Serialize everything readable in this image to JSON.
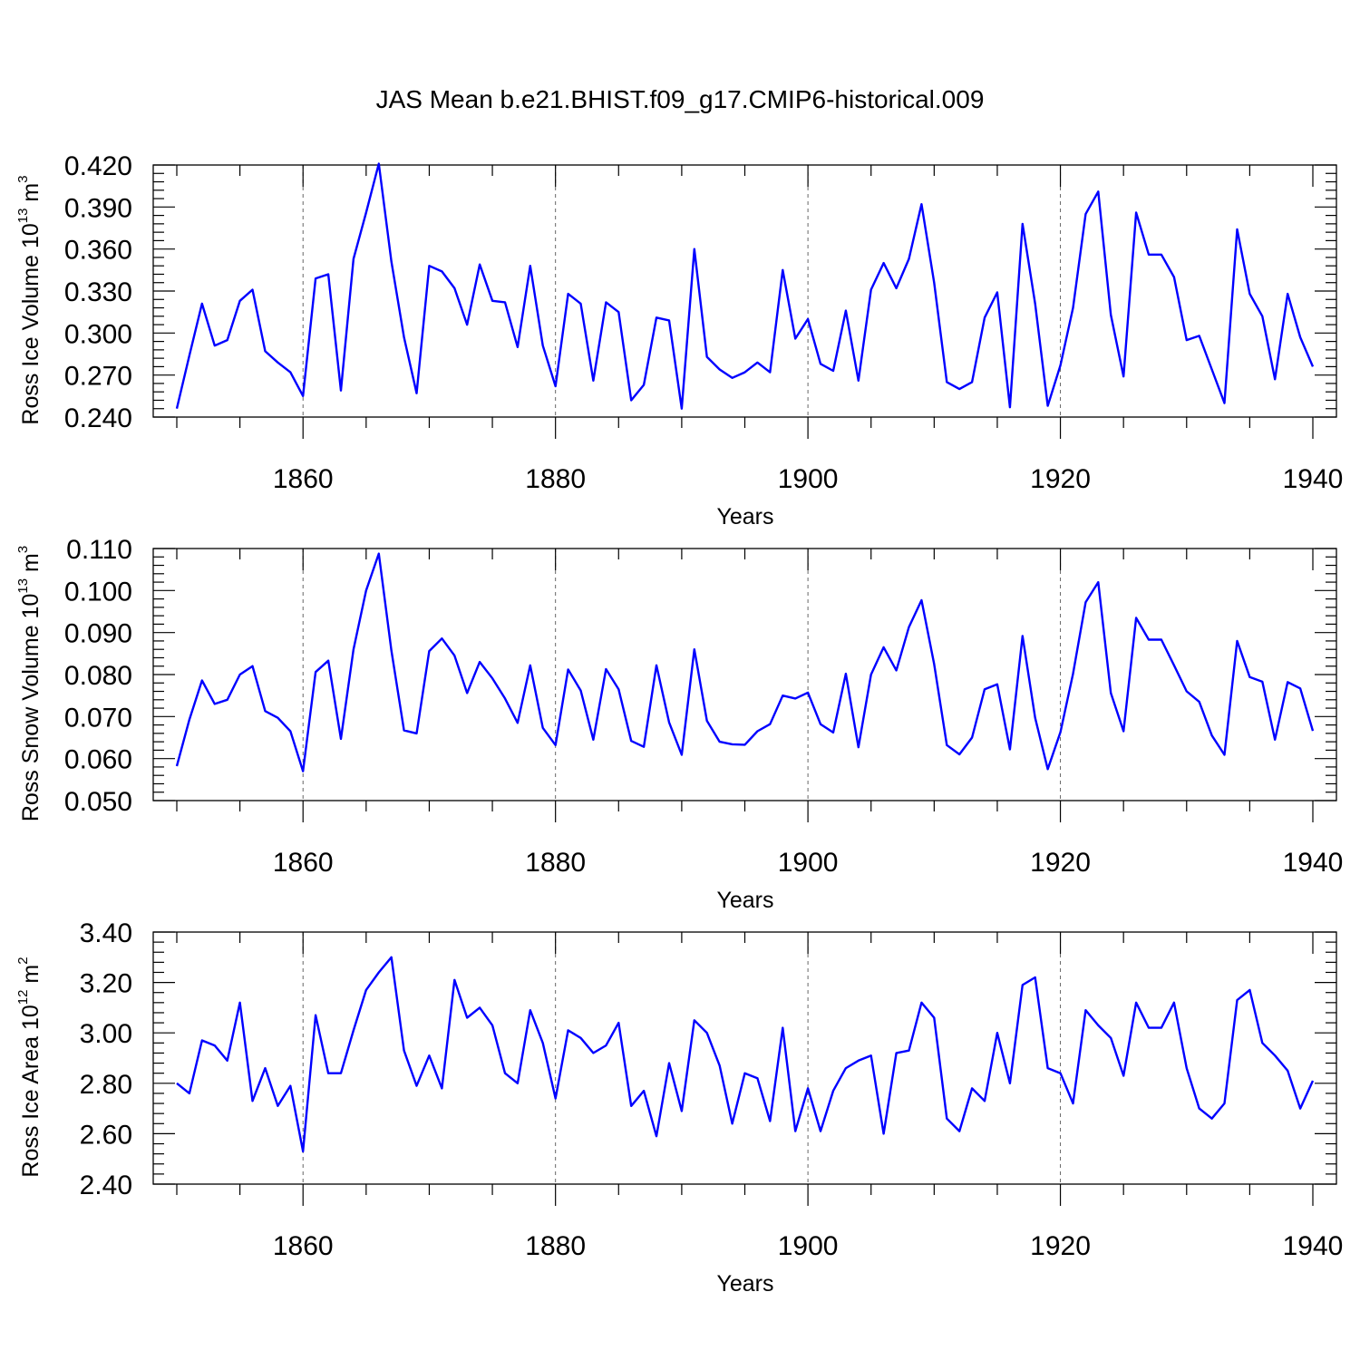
{
  "figure": {
    "title": "JAS Mean b.e21.BHIST.f09_g17.CMIP6-historical.009"
  },
  "chart_data": [
    {
      "type": "line",
      "ylabel": "Ross Ice Volume 10",
      "ylabel_exp": "13",
      "ylabel_unit": "m",
      "ylabel_unit_exp": "3",
      "xlabel": "Years",
      "xlim": [
        1850,
        1940
      ],
      "ylim": [
        0.24,
        0.42
      ],
      "yticks": [
        0.24,
        0.27,
        0.3,
        0.33,
        0.36,
        0.39,
        0.42
      ],
      "ytick_labels": [
        "0.240",
        "0.270",
        "0.300",
        "0.330",
        "0.360",
        "0.390",
        "0.420"
      ],
      "xticks": [
        1860,
        1880,
        1900,
        1920,
        1940
      ],
      "xtick_labels": [
        "1860",
        "1880",
        "1900",
        "1920",
        "1940"
      ],
      "grid_x": [
        1860,
        1880,
        1900,
        1920
      ],
      "color": "#0000ff",
      "x_start": 1850,
      "values": [
        0.246,
        0.284,
        0.321,
        0.291,
        0.295,
        0.323,
        0.331,
        0.287,
        0.279,
        0.272,
        0.255,
        0.339,
        0.342,
        0.259,
        0.353,
        0.386,
        0.421,
        0.351,
        0.297,
        0.257,
        0.348,
        0.344,
        0.332,
        0.306,
        0.349,
        0.323,
        0.322,
        0.29,
        0.348,
        0.291,
        0.262,
        0.328,
        0.321,
        0.266,
        0.322,
        0.315,
        0.252,
        0.263,
        0.311,
        0.309,
        0.246,
        0.36,
        0.283,
        0.274,
        0.268,
        0.272,
        0.279,
        0.272,
        0.345,
        0.296,
        0.31,
        0.278,
        0.273,
        0.316,
        0.266,
        0.331,
        0.35,
        0.332,
        0.353,
        0.392,
        0.336,
        0.265,
        0.26,
        0.265,
        0.311,
        0.329,
        0.247,
        0.378,
        0.321,
        0.248,
        0.277,
        0.318,
        0.385,
        0.401,
        0.313,
        0.269,
        0.386,
        0.356,
        0.356,
        0.34,
        0.295,
        0.298,
        0.274,
        0.25,
        0.374,
        0.328,
        0.312,
        0.267,
        0.328,
        0.297,
        0.276
      ]
    },
    {
      "type": "line",
      "ylabel": "Ross Snow Volume 10",
      "ylabel_exp": "13",
      "ylabel_unit": "m",
      "ylabel_unit_exp": "3",
      "xlabel": "Years",
      "xlim": [
        1850,
        1940
      ],
      "ylim": [
        0.05,
        0.11
      ],
      "yticks": [
        0.05,
        0.06,
        0.07,
        0.08,
        0.09,
        0.1,
        0.11
      ],
      "ytick_labels": [
        "0.050",
        "0.060",
        "0.070",
        "0.080",
        "0.090",
        "0.100",
        "0.110"
      ],
      "xticks": [
        1860,
        1880,
        1900,
        1920,
        1940
      ],
      "xtick_labels": [
        "1860",
        "1880",
        "1900",
        "1920",
        "1940"
      ],
      "grid_x": [
        1860,
        1880,
        1900,
        1920
      ],
      "color": "#0000ff",
      "x_start": 1850,
      "values": [
        0.0582,
        0.0693,
        0.0786,
        0.073,
        0.074,
        0.08,
        0.082,
        0.0713,
        0.0697,
        0.0665,
        0.057,
        0.0806,
        0.0833,
        0.0647,
        0.086,
        0.1,
        0.1088,
        0.0857,
        0.0667,
        0.066,
        0.0856,
        0.0886,
        0.0845,
        0.0756,
        0.083,
        0.0791,
        0.0743,
        0.0685,
        0.0822,
        0.0673,
        0.0632,
        0.0812,
        0.0762,
        0.0645,
        0.0813,
        0.0765,
        0.0642,
        0.0628,
        0.0822,
        0.0686,
        0.0609,
        0.086,
        0.069,
        0.064,
        0.0634,
        0.0633,
        0.0665,
        0.0682,
        0.075,
        0.0743,
        0.0757,
        0.0682,
        0.0662,
        0.0802,
        0.0627,
        0.08,
        0.0865,
        0.081,
        0.0913,
        0.0977,
        0.0825,
        0.0632,
        0.061,
        0.065,
        0.0765,
        0.0777,
        0.0622,
        0.0892,
        0.0697,
        0.0575,
        0.0663,
        0.0802,
        0.0972,
        0.102,
        0.0756,
        0.0665,
        0.0935,
        0.0883,
        0.0883,
        0.0822,
        0.076,
        0.0735,
        0.0655,
        0.0609,
        0.088,
        0.0794,
        0.0783,
        0.0645,
        0.0782,
        0.0767,
        0.0666
      ]
    },
    {
      "type": "line",
      "ylabel": "Ross Ice Area 10",
      "ylabel_exp": "12",
      "ylabel_unit": "m",
      "ylabel_unit_exp": "2",
      "xlabel": "Years",
      "xlim": [
        1850,
        1940
      ],
      "ylim": [
        2.4,
        3.4
      ],
      "yticks": [
        2.4,
        2.6,
        2.8,
        3.0,
        3.2,
        3.4
      ],
      "ytick_labels": [
        "2.40",
        "2.60",
        "2.80",
        "3.00",
        "3.20",
        "3.40"
      ],
      "xticks": [
        1860,
        1880,
        1900,
        1920,
        1940
      ],
      "xtick_labels": [
        "1860",
        "1880",
        "1900",
        "1920",
        "1940"
      ],
      "grid_x": [
        1860,
        1880,
        1900,
        1920
      ],
      "color": "#0000ff",
      "x_start": 1850,
      "values": [
        2.8,
        2.76,
        2.97,
        2.95,
        2.89,
        3.12,
        2.73,
        2.86,
        2.71,
        2.79,
        2.53,
        3.07,
        2.84,
        2.84,
        3.01,
        3.17,
        3.24,
        3.3,
        2.93,
        2.79,
        2.91,
        2.78,
        3.21,
        3.06,
        3.1,
        3.03,
        2.84,
        2.8,
        3.09,
        2.96,
        2.74,
        3.01,
        2.98,
        2.92,
        2.95,
        3.04,
        2.71,
        2.77,
        2.59,
        2.88,
        2.69,
        3.05,
        3.0,
        2.87,
        2.64,
        2.84,
        2.82,
        2.65,
        3.02,
        2.61,
        2.78,
        2.61,
        2.77,
        2.86,
        2.89,
        2.91,
        2.6,
        2.92,
        2.93,
        3.12,
        3.06,
        2.66,
        2.61,
        2.78,
        2.73,
        3.0,
        2.8,
        3.19,
        3.22,
        2.86,
        2.84,
        2.72,
        3.09,
        3.03,
        2.98,
        2.83,
        3.12,
        3.02,
        3.02,
        3.12,
        2.86,
        2.7,
        2.66,
        2.72,
        3.13,
        3.17,
        2.96,
        2.91,
        2.85,
        2.7,
        2.81
      ]
    }
  ]
}
